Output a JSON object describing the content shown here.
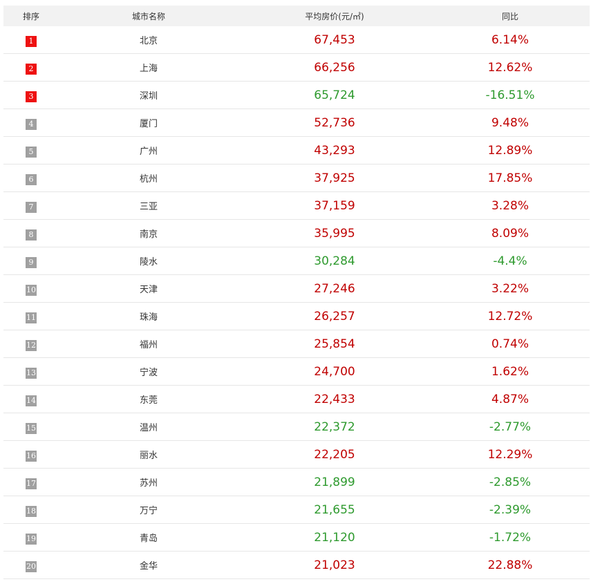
{
  "table": {
    "header": [
      "排序",
      "城市名称",
      "平均房价(元/㎡)",
      "同比"
    ],
    "rows": [
      [
        "1",
        "北京",
        "67,453",
        "6.14%"
      ],
      [
        "2",
        "上海",
        "66,256",
        "12.62%"
      ],
      [
        "3",
        "深圳",
        "65,724",
        "-16.51%"
      ],
      [
        "4",
        "厦门",
        "52,736",
        "9.48%"
      ],
      [
        "5",
        "广州",
        "43,293",
        "12.89%"
      ],
      [
        "6",
        "杭州",
        "37,925",
        "17.85%"
      ],
      [
        "7",
        "三亚",
        "37,159",
        "3.28%"
      ],
      [
        "8",
        "南京",
        "35,995",
        "8.09%"
      ],
      [
        "9",
        "陵水",
        "30,284",
        "-4.4%"
      ],
      [
        "10",
        "天津",
        "27,246",
        "3.22%"
      ],
      [
        "11",
        "珠海",
        "26,257",
        "12.72%"
      ],
      [
        "12",
        "福州",
        "25,854",
        "0.74%"
      ],
      [
        "13",
        "宁波",
        "24,700",
        "1.62%"
      ],
      [
        "14",
        "东莞",
        "22,433",
        "4.87%"
      ],
      [
        "15",
        "温州",
        "22,372",
        "-2.77%"
      ],
      [
        "16",
        "丽水",
        "22,205",
        "12.29%"
      ],
      [
        "17",
        "苏州",
        "21,899",
        "-2.85%"
      ],
      [
        "18",
        "万宁",
        "21,655",
        "-2.39%"
      ],
      [
        "19",
        "青岛",
        "21,120",
        "-1.72%"
      ],
      [
        "20",
        "金华",
        "21,023",
        "22.88%"
      ]
    ]
  }
}
